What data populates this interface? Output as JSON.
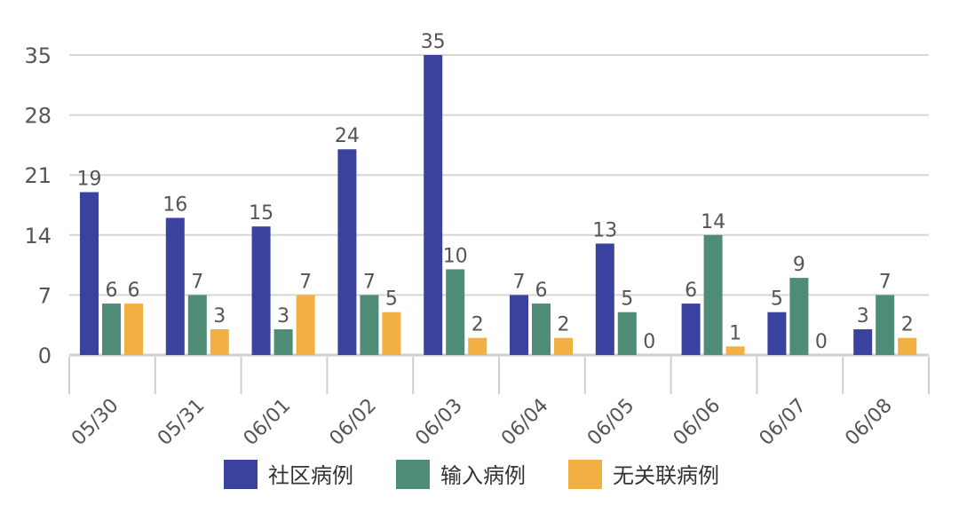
{
  "chart_data": {
    "type": "bar",
    "title": "",
    "xlabel": "",
    "ylabel": "",
    "ylim": [
      0,
      35
    ],
    "yticks": [
      0,
      7,
      14,
      21,
      28,
      35
    ],
    "grid": true,
    "legend_position": "bottom",
    "categories": [
      "05/30",
      "05/31",
      "06/01",
      "06/02",
      "06/03",
      "06/04",
      "06/05",
      "06/06",
      "06/07",
      "06/08"
    ],
    "series": [
      {
        "name": "社区病例",
        "color": "#3a42a0",
        "values": [
          19,
          16,
          15,
          24,
          35,
          7,
          13,
          6,
          5,
          3
        ]
      },
      {
        "name": "输入病例",
        "color": "#4f8c77",
        "values": [
          6,
          7,
          3,
          7,
          10,
          6,
          5,
          14,
          9,
          7
        ]
      },
      {
        "name": "无关联病例",
        "color": "#f3b042",
        "values": [
          6,
          3,
          7,
          5,
          2,
          2,
          0,
          1,
          0,
          2
        ]
      }
    ]
  }
}
